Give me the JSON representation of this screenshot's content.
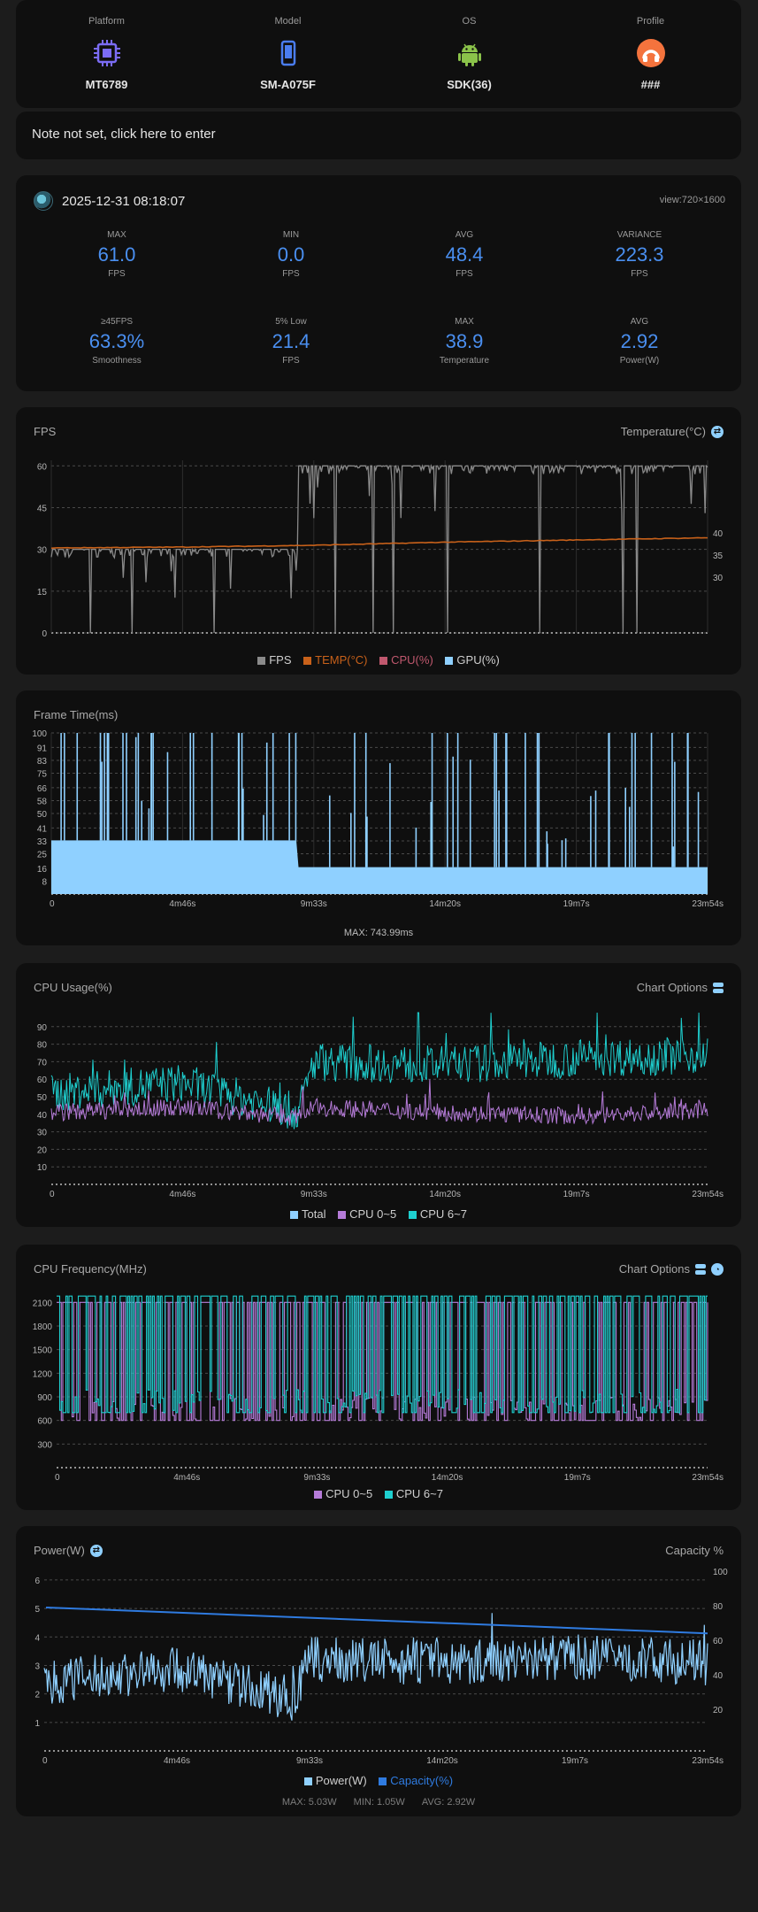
{
  "device": [
    {
      "label": "Platform",
      "value": "MT6789",
      "icon": "chip-icon"
    },
    {
      "label": "Model",
      "value": "SM-A075F",
      "icon": "phone-icon"
    },
    {
      "label": "OS",
      "value": "SDK(36)",
      "icon": "android-icon"
    },
    {
      "label": "Profile",
      "value": "###",
      "icon": "profile-icon"
    }
  ],
  "note": {
    "text": "Note not set, click here to enter"
  },
  "session": {
    "date": "2025-12-31 08:18:07",
    "view": "view:720×1600",
    "stats": [
      {
        "label": "MAX",
        "value": "61.0",
        "unit": "FPS"
      },
      {
        "label": "MIN",
        "value": "0.0",
        "unit": "FPS"
      },
      {
        "label": "AVG",
        "value": "48.4",
        "unit": "FPS"
      },
      {
        "label": "VARIANCE",
        "value": "223.3",
        "unit": "FPS"
      },
      {
        "label": "≥45FPS",
        "value": "63.3%",
        "unit": "Smoothness"
      },
      {
        "label": "5% Low",
        "value": "21.4",
        "unit": "FPS"
      },
      {
        "label": "MAX",
        "value": "38.9",
        "unit": "Temperature"
      },
      {
        "label": "AVG",
        "value": "2.92",
        "unit": "Power(W)"
      }
    ]
  },
  "colors": {
    "accent": "#4a8ff0",
    "fps": "#8a8a8a",
    "temp": "#c8611a",
    "cpu": "#c0586e",
    "gpu": "#8fd0ff",
    "little": "#b57bd8",
    "big": "#1ecfcf",
    "capacity": "#2f7be0"
  },
  "x_ticks": [
    "0",
    "4m46s",
    "9m33s",
    "14m20s",
    "19m7s",
    "23m54s"
  ],
  "charts": {
    "fps": {
      "title": "FPS",
      "right_title": "Temperature(°C)",
      "legend": [
        "FPS",
        "TEMP(°C)",
        "CPU(%)",
        "GPU(%)"
      ]
    },
    "frametime": {
      "title": "Frame Time(ms)",
      "footer": "MAX: 743.99ms"
    },
    "cpu_usage": {
      "title": "CPU Usage(%)",
      "options": "Chart Options",
      "legend": [
        "Total",
        "CPU 0~5",
        "CPU 6~7"
      ]
    },
    "cpu_freq": {
      "title": "CPU Frequency(MHz)",
      "options": "Chart Options",
      "legend": [
        "CPU 0~5",
        "CPU 6~7"
      ]
    },
    "power": {
      "title": "Power(W)",
      "right_title": "Capacity %",
      "legend": [
        "Power(W)",
        "Capacity(%)"
      ],
      "max": "MAX: 5.03W",
      "min": "MIN: 1.05W",
      "avg": "AVG: 2.92W"
    }
  },
  "chart_data": [
    {
      "type": "line",
      "title": "FPS",
      "x_range_s": [
        0,
        1434
      ],
      "y_ticks": [
        0,
        15,
        30,
        45,
        60
      ],
      "y2_ticks": [
        30,
        35,
        40
      ],
      "series": [
        {
          "name": "FPS",
          "segments": [
            {
              "x": [
                0,
                540
              ],
              "level": 30
            },
            {
              "x": [
                540,
                1434
              ],
              "level": 60
            }
          ],
          "min": 0,
          "max": 61.0,
          "avg": 48.4
        },
        {
          "name": "TEMP(°C)",
          "x": [
            0,
            287,
            574,
            860,
            1147,
            1434
          ],
          "values": [
            36.6,
            36.8,
            37.2,
            37.9,
            38.4,
            38.9
          ]
        }
      ]
    },
    {
      "type": "bar",
      "title": "Frame Time(ms)",
      "x_range_s": [
        0,
        1434
      ],
      "y_ticks": [
        8,
        16,
        25,
        33,
        41,
        50,
        58,
        66,
        75,
        83,
        91,
        100
      ],
      "series": [
        {
          "name": "Frame Time",
          "segments": [
            {
              "x": [
                0,
                540
              ],
              "level": 33.3
            },
            {
              "x": [
                540,
                1434
              ],
              "level": 16.7
            }
          ],
          "max": 743.99
        }
      ]
    },
    {
      "type": "line",
      "title": "CPU Usage(%)",
      "x_range_s": [
        0,
        1434
      ],
      "y_ticks": [
        10,
        20,
        30,
        40,
        50,
        60,
        70,
        80,
        90
      ],
      "series": [
        {
          "name": "CPU 0~5",
          "x": [
            0,
            287,
            540,
            574,
            860,
            1147,
            1434
          ],
          "values": [
            41,
            44,
            38,
            44,
            41,
            39,
            42
          ]
        },
        {
          "name": "CPU 6~7",
          "x": [
            0,
            287,
            540,
            574,
            860,
            1147,
            1434
          ],
          "values": [
            52,
            58,
            41,
            70,
            68,
            72,
            74
          ]
        }
      ]
    },
    {
      "type": "line",
      "title": "CPU Frequency(MHz)",
      "x_range_s": [
        0,
        1434
      ],
      "y_ticks": [
        300,
        600,
        900,
        1200,
        1500,
        1800,
        2100
      ],
      "series": [
        {
          "name": "CPU 0~5",
          "min": 600,
          "max": 2100
        },
        {
          "name": "CPU 6~7",
          "min": 700,
          "max": 2200
        }
      ]
    },
    {
      "type": "line",
      "title": "Power(W)",
      "x_range_s": [
        0,
        1434
      ],
      "y_ticks": [
        1,
        2,
        3,
        4,
        5,
        6
      ],
      "y2_ticks": [
        20,
        40,
        60,
        80,
        100
      ],
      "series": [
        {
          "name": "Power(W)",
          "x": [
            0,
            287,
            540,
            574,
            860,
            1147,
            1434
          ],
          "values": [
            2.4,
            2.9,
            1.8,
            3.2,
            3.1,
            3.3,
            3.1
          ],
          "max": 5.03,
          "min": 1.05,
          "avg": 2.92
        },
        {
          "name": "Capacity(%)",
          "x": [
            0,
            1434
          ],
          "values": [
            79,
            64
          ]
        }
      ]
    }
  ]
}
